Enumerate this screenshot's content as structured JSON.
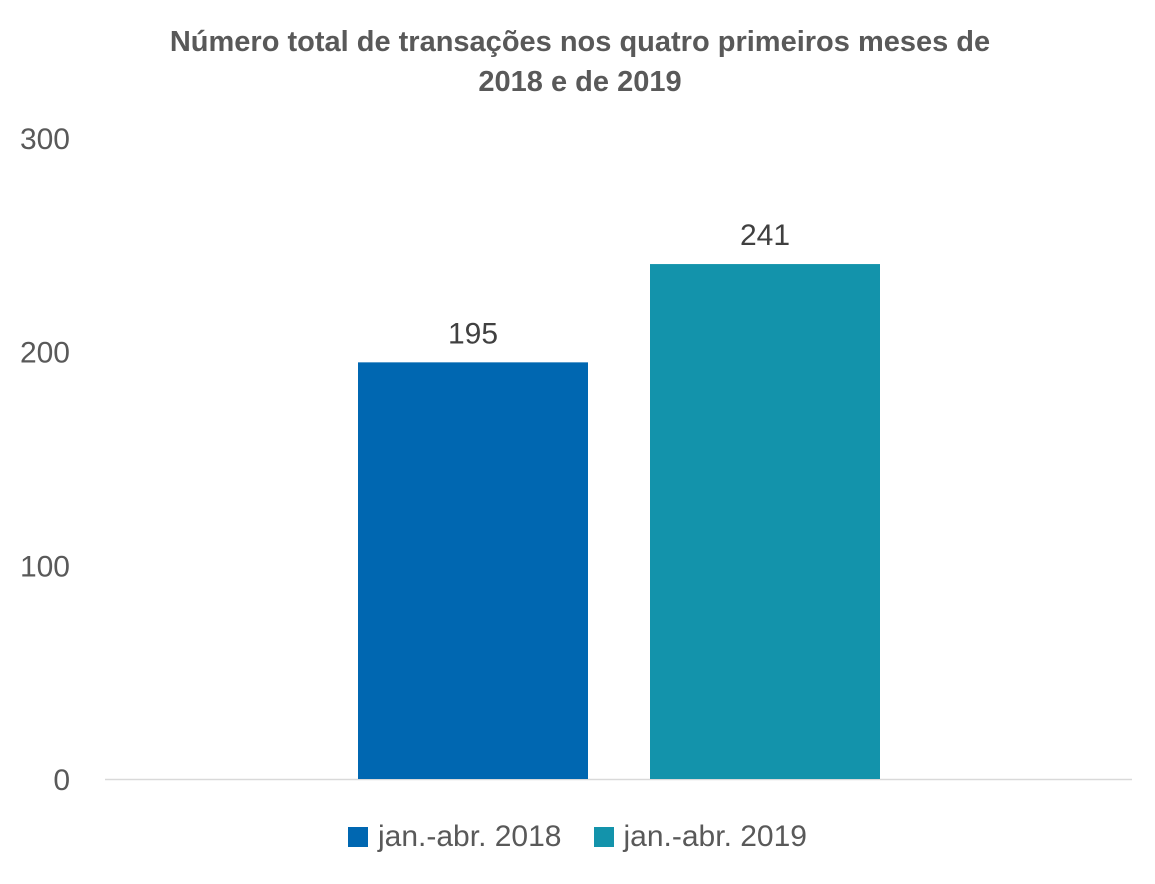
{
  "chart_data": {
    "type": "bar",
    "title_lines": [
      "Número total de transações nos quatro primeiros meses de",
      "2018 e de 2019"
    ],
    "categories": [
      ""
    ],
    "series": [
      {
        "name": "jan.-abr. 2018",
        "values": [
          195
        ],
        "color": "#0067B1"
      },
      {
        "name": "jan.-abr. 2019",
        "values": [
          241
        ],
        "color": "#1393AB"
      }
    ],
    "yticks": [
      "0",
      "100",
      "200",
      "300"
    ],
    "ylim": [
      0,
      300
    ],
    "data_labels": [
      "195",
      "241"
    ],
    "grid": false,
    "legend": "bottom"
  }
}
